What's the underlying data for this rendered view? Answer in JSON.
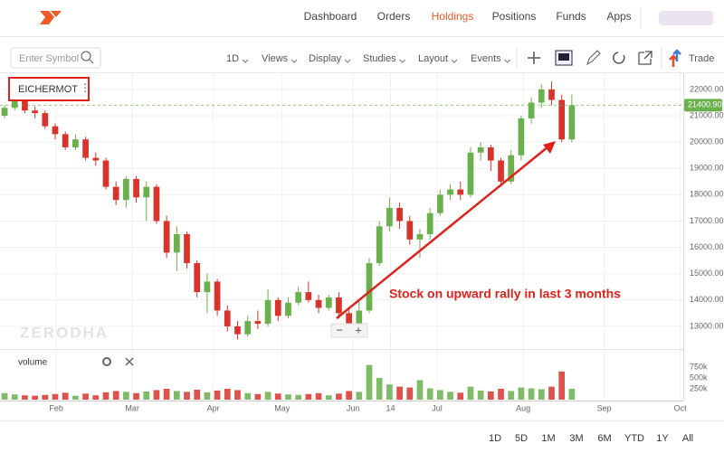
{
  "nav": {
    "items": [
      "Dashboard",
      "Orders",
      "Holdings",
      "Positions",
      "Funds",
      "Apps"
    ],
    "active": 2
  },
  "toolbar": {
    "search_placeholder": "Enter Symbol",
    "menus": [
      "1D",
      "Views",
      "Display",
      "Studies",
      "Layout",
      "Events"
    ],
    "trade": "Trade"
  },
  "ranges": [
    "1D",
    "5D",
    "1M",
    "3M",
    "6M",
    "YTD",
    "1Y",
    "All"
  ],
  "chart_data": {
    "type": "candlestick",
    "symbol": "EICHERMOT",
    "watermark": "ZERODHA",
    "volume_label": "volume",
    "annotation": "Stock on upward rally in last 3 months",
    "up_color": "#6ab04c",
    "down_color": "#d9342b",
    "grid": true,
    "categories": [
      null,
      null,
      null,
      null,
      null,
      null,
      null,
      null,
      null,
      null,
      null,
      null,
      null,
      null,
      null,
      null,
      null,
      null,
      null,
      null,
      null,
      null,
      null,
      null,
      null,
      null,
      null,
      null,
      null,
      null,
      null,
      null,
      null,
      null,
      null,
      null,
      null,
      null,
      null,
      null,
      null,
      null,
      null,
      null,
      null,
      null,
      null,
      null,
      null,
      null,
      null,
      null,
      null,
      null,
      null,
      null,
      null
    ],
    "open": [
      21000,
      21300,
      21600,
      21200,
      21100,
      20600,
      20300,
      19800,
      20100,
      19400,
      19300,
      18300,
      17800,
      18600,
      17900,
      18300,
      17000,
      15800,
      16500,
      15400,
      14300,
      14700,
      13600,
      13000,
      12700,
      13200,
      13100,
      14000,
      13400,
      13900,
      14300,
      14000,
      13700,
      14100,
      13500,
      13100,
      13600,
      15400,
      16800,
      17500,
      17000,
      16300,
      16500,
      17300,
      18000,
      18200,
      18000,
      19600,
      19800,
      19300,
      18500,
      19500,
      20900,
      21500,
      22000,
      21600,
      20100
    ],
    "high": [
      21400,
      21700,
      21650,
      21350,
      21200,
      20700,
      20400,
      20300,
      20200,
      19600,
      19400,
      18500,
      18700,
      18700,
      18500,
      18400,
      17200,
      16800,
      16600,
      15500,
      15000,
      14800,
      13800,
      13200,
      13400,
      13600,
      14400,
      14100,
      14100,
      14500,
      14700,
      14200,
      14200,
      14300,
      13700,
      14000,
      15600,
      17000,
      17900,
      17700,
      17200,
      16700,
      17500,
      18200,
      18400,
      18500,
      19800,
      20000,
      19900,
      19400,
      19700,
      21000,
      21700,
      22200,
      22300,
      21800,
      21800
    ],
    "low": [
      20900,
      21200,
      21100,
      20900,
      20500,
      20100,
      19700,
      19700,
      19300,
      19100,
      18200,
      17600,
      17500,
      17700,
      17000,
      16900,
      15600,
      15100,
      15200,
      14100,
      13500,
      13400,
      12800,
      12500,
      12600,
      12900,
      13000,
      13200,
      13300,
      13800,
      13900,
      13500,
      13600,
      13300,
      12900,
      13000,
      13500,
      15300,
      16600,
      16700,
      16100,
      15600,
      16300,
      17200,
      17800,
      17800,
      17900,
      19300,
      18900,
      18300,
      18400,
      19300,
      20700,
      21300,
      21400,
      20000,
      20000
    ],
    "close": [
      21300,
      21600,
      21200,
      21100,
      20600,
      20300,
      19800,
      20100,
      19400,
      19300,
      18300,
      17800,
      18600,
      17900,
      18300,
      17000,
      15800,
      16500,
      15400,
      14300,
      14700,
      13600,
      13000,
      12700,
      13200,
      13100,
      14000,
      13400,
      13900,
      14300,
      14000,
      13700,
      14100,
      13500,
      13100,
      13600,
      15400,
      16800,
      17500,
      17000,
      16300,
      16500,
      17300,
      18000,
      18200,
      18000,
      19600,
      19800,
      19300,
      18500,
      19500,
      20900,
      21500,
      22000,
      21600,
      20100,
      21400
    ],
    "volume": [
      150000,
      120000,
      100000,
      90000,
      110000,
      130000,
      160000,
      90000,
      140000,
      100000,
      170000,
      200000,
      180000,
      150000,
      190000,
      220000,
      250000,
      200000,
      180000,
      230000,
      170000,
      210000,
      250000,
      220000,
      150000,
      130000,
      180000,
      140000,
      120000,
      110000,
      130000,
      150000,
      100000,
      140000,
      200000,
      180000,
      800000,
      500000,
      350000,
      300000,
      280000,
      450000,
      260000,
      220000,
      180000,
      160000,
      300000,
      210000,
      190000,
      250000,
      200000,
      280000,
      260000,
      240000,
      300000,
      650000,
      250000
    ],
    "last_price": 21400.9,
    "last_price_label": "21400.90",
    "xlim": [
      -0.45,
      67
    ],
    "xticks": [
      {
        "value": 5.1,
        "label": "Feb"
      },
      {
        "value": 12.6,
        "label": "Mar"
      },
      {
        "value": 20.6,
        "label": "Apr"
      },
      {
        "value": 27.4,
        "label": "May"
      },
      {
        "value": 34.4,
        "label": "Jun"
      },
      {
        "value": 38.1,
        "label": "14"
      },
      {
        "value": 42.7,
        "label": "Jul"
      },
      {
        "value": 51.2,
        "label": "Aug"
      },
      {
        "value": 59.2,
        "label": "Sep"
      },
      {
        "value": 66.7,
        "label": "Oct"
      }
    ],
    "ylim": [
      12070,
      22580
    ],
    "yticks": [
      {
        "value": 13000,
        "label": "13000.00"
      },
      {
        "value": 14000,
        "label": "14000.00"
      },
      {
        "value": 15000,
        "label": "15000.00"
      },
      {
        "value": 16000,
        "label": "16000.00"
      },
      {
        "value": 17000,
        "label": "17000.00"
      },
      {
        "value": 18000,
        "label": "18000.00"
      },
      {
        "value": 19000,
        "label": "19000.00"
      },
      {
        "value": 20000,
        "label": "20000.00"
      },
      {
        "value": 21000,
        "label": "21000.00"
      },
      {
        "value": 22000,
        "label": "22000.00"
      }
    ],
    "vlim": [
      0,
      980000
    ],
    "vticks": [
      {
        "value": 250000,
        "label": "250k"
      },
      {
        "value": 500000,
        "label": "500k"
      },
      {
        "value": 750000,
        "label": "750k"
      }
    ]
  }
}
